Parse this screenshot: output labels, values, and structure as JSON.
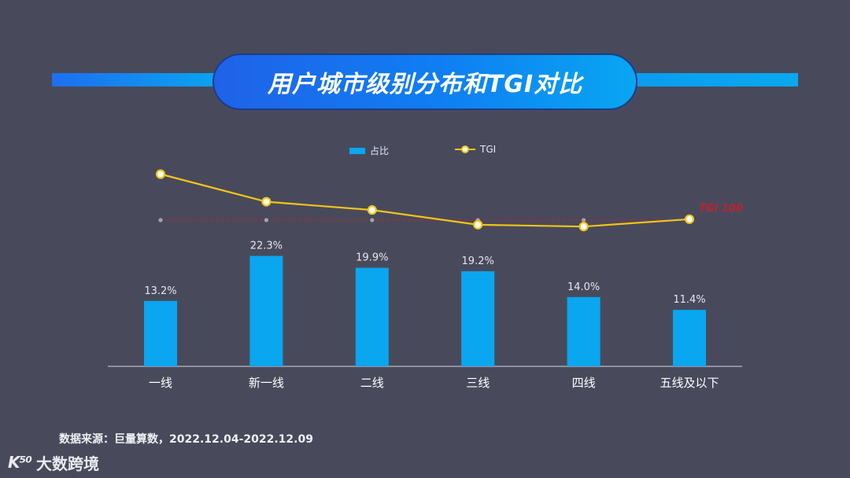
{
  "title": "用户城市级别分布和TGI对比",
  "legend": {
    "bar_label": "占比",
    "line_label": "TGI"
  },
  "source": "数据来源：巨量算数，2022.12.04-2022.12.09",
  "logo": {
    "mark": "K⁵⁰",
    "text": "大数跨境"
  },
  "colors": {
    "background": "#484a5c",
    "bar": "#0aa6f0",
    "line": "#f2c418",
    "reference": "#c0212e",
    "title_start": "#1f62e8",
    "title_end": "#08a6f2"
  },
  "chart_data": {
    "type": "bar",
    "categories": [
      "一线",
      "新一线",
      "二线",
      "三线",
      "四线",
      "五线及以下"
    ],
    "series": [
      {
        "name": "占比",
        "type": "bar",
        "values": [
          13.2,
          22.3,
          19.9,
          19.2,
          14.0,
          11.4
        ],
        "labels": [
          "13.2%",
          "22.3%",
          "19.9%",
          "19.2%",
          "14.0%",
          "11.4%"
        ]
      },
      {
        "name": "TGI",
        "type": "line",
        "values": [
          150,
          120,
          111,
          95,
          93,
          101
        ]
      }
    ],
    "reference_line": {
      "value": 100,
      "label": "TGI 100"
    },
    "bar_ylim": [
      0,
      30
    ],
    "line_ylim": [
      60,
      170
    ],
    "legend_position": "top-center"
  }
}
